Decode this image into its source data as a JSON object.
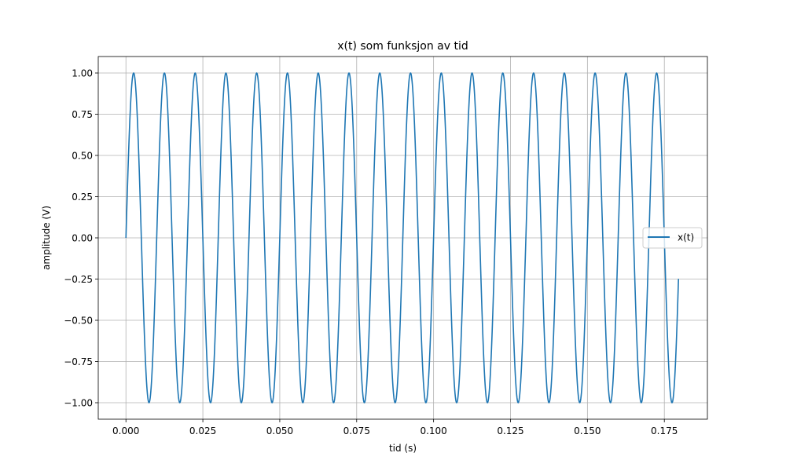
{
  "chart_data": {
    "type": "line",
    "title": "x(t) som funksjon av tid",
    "xlabel": "tid (s)",
    "ylabel": "amplitude (V)",
    "xlim": [
      -0.009,
      0.189
    ],
    "ylim": [
      -1.1,
      1.1
    ],
    "x_ticks": [
      "0.000",
      "0.025",
      "0.050",
      "0.075",
      "0.100",
      "0.125",
      "0.150",
      "0.175"
    ],
    "y_ticks": [
      "1.00",
      "0.75",
      "0.50",
      "0.25",
      "0.00",
      "−0.25",
      "−0.50",
      "−0.75",
      "−1.00"
    ],
    "grid": true,
    "legend": {
      "position": "center-right",
      "entries": [
        "x(t)"
      ]
    },
    "series": [
      {
        "name": "x(t)",
        "function": "sin(2*pi*f*t)",
        "frequency_hz": 100,
        "amplitude": 1.0,
        "t_start": 0.0,
        "t_end": 0.1796,
        "color": "#1f77b4"
      }
    ]
  }
}
